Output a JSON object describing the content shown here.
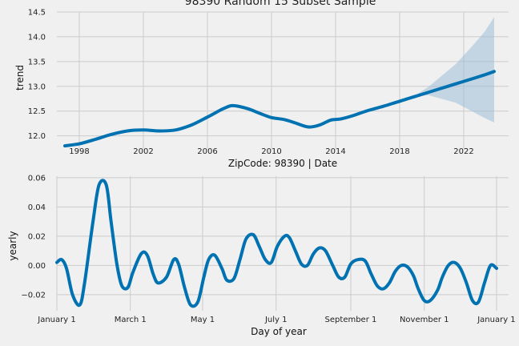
{
  "chart_data": [
    {
      "type": "line",
      "title": "98390 Random 15 Subset Sample",
      "xlabel": "ZipCode: 98390 | Date",
      "ylabel": "trend",
      "xlim": [
        1996.6,
        2024.8
      ],
      "ylim": [
        11.72,
        14.5
      ],
      "xticks": [
        1998,
        2002,
        2006,
        2010,
        2014,
        2018,
        2022
      ],
      "yticks": [
        "12.0",
        "12.5",
        "13.0",
        "13.5",
        "14.0",
        "14.5"
      ],
      "grid": true,
      "colors": {
        "line": "#0072b2",
        "band": "#9ebfd9"
      },
      "series": [
        {
          "x": [
            1997.1,
            1998.0,
            1999.0,
            2000.0,
            2001.0,
            2002.0,
            2003.0,
            2004.0,
            2005.0,
            2006.0,
            2007.0,
            2007.6,
            2008.5,
            2009.3,
            2010.0,
            2010.8,
            2011.5,
            2012.3,
            2013.0,
            2013.7,
            2014.3,
            2015.0,
            2016.0,
            2017.0,
            2018.0,
            2019.0,
            2020.0,
            2021.0,
            2022.0,
            2023.0,
            2023.9
          ],
          "y": [
            11.8,
            11.84,
            11.93,
            12.03,
            12.1,
            12.12,
            12.1,
            12.12,
            12.22,
            12.38,
            12.55,
            12.61,
            12.55,
            12.45,
            12.37,
            12.33,
            12.26,
            12.18,
            12.22,
            12.32,
            12.34,
            12.4,
            12.51,
            12.6,
            12.7,
            12.8,
            12.9,
            13.0,
            13.1,
            13.2,
            13.3
          ]
        }
      ],
      "uncertainty": {
        "x": [
          2019.0,
          2019.8,
          2020.5,
          2021.5,
          2022.5,
          2023.3,
          2023.9
        ],
        "upper": [
          12.82,
          12.99,
          13.18,
          13.45,
          13.8,
          14.1,
          14.4
        ],
        "lower": [
          12.8,
          12.82,
          12.76,
          12.67,
          12.5,
          12.36,
          12.27
        ]
      }
    },
    {
      "type": "line",
      "title": "",
      "xlabel": "Day of year",
      "ylabel": "yearly",
      "xlim": [
        0,
        375
      ],
      "ylim": [
        -0.031,
        0.061
      ],
      "xticks": [
        {
          "day": 0,
          "label": "January 1"
        },
        {
          "day": 61,
          "label": "March 1"
        },
        {
          "day": 121,
          "label": "May 1"
        },
        {
          "day": 182,
          "label": "July 1"
        },
        {
          "day": 244,
          "label": "September 1"
        },
        {
          "day": 305,
          "label": "November 1"
        },
        {
          "day": 365,
          "label": "January 1"
        }
      ],
      "yticks": [
        "0.06",
        "0.04",
        "0.02",
        "0.00",
        "−0.02"
      ],
      "yticks_values": [
        0.06,
        0.04,
        0.02,
        0.0,
        -0.02
      ],
      "grid": true,
      "series": [
        {
          "x": [
            0,
            4,
            8,
            13,
            19,
            23,
            30,
            35,
            41,
            45,
            50,
            54,
            59,
            63,
            70,
            75,
            80,
            84,
            91,
            97,
            101,
            106,
            111,
            117,
            122,
            126,
            131,
            137,
            141,
            147,
            152,
            157,
            163,
            168,
            173,
            178,
            183,
            189,
            193,
            198,
            203,
            208,
            213,
            218,
            223,
            229,
            234,
            239,
            244,
            250,
            256,
            261,
            266,
            271,
            276,
            281,
            286,
            291,
            296,
            300,
            305,
            310,
            316,
            320,
            325,
            330,
            335,
            340,
            345,
            350,
            355,
            360,
            365
          ],
          "y": [
            0.002,
            0.004,
            -0.002,
            -0.02,
            -0.027,
            -0.012,
            0.03,
            0.055,
            0.055,
            0.03,
            0.0,
            -0.014,
            -0.015,
            -0.005,
            0.008,
            0.007,
            -0.006,
            -0.012,
            -0.008,
            0.004,
            0.001,
            -0.015,
            -0.027,
            -0.025,
            -0.008,
            0.004,
            0.007,
            -0.002,
            -0.01,
            -0.009,
            0.004,
            0.018,
            0.021,
            0.013,
            0.004,
            0.002,
            0.013,
            0.02,
            0.019,
            0.01,
            0.001,
            0.0,
            0.008,
            0.012,
            0.01,
            0.0,
            -0.008,
            -0.008,
            0.001,
            0.004,
            0.003,
            -0.006,
            -0.014,
            -0.016,
            -0.012,
            -0.004,
            0.0,
            -0.001,
            -0.007,
            -0.016,
            -0.024,
            -0.024,
            -0.017,
            -0.008,
            0.0,
            0.002,
            -0.002,
            -0.012,
            -0.024,
            -0.025,
            -0.012,
            0.0,
            -0.002
          ]
        }
      ]
    }
  ]
}
